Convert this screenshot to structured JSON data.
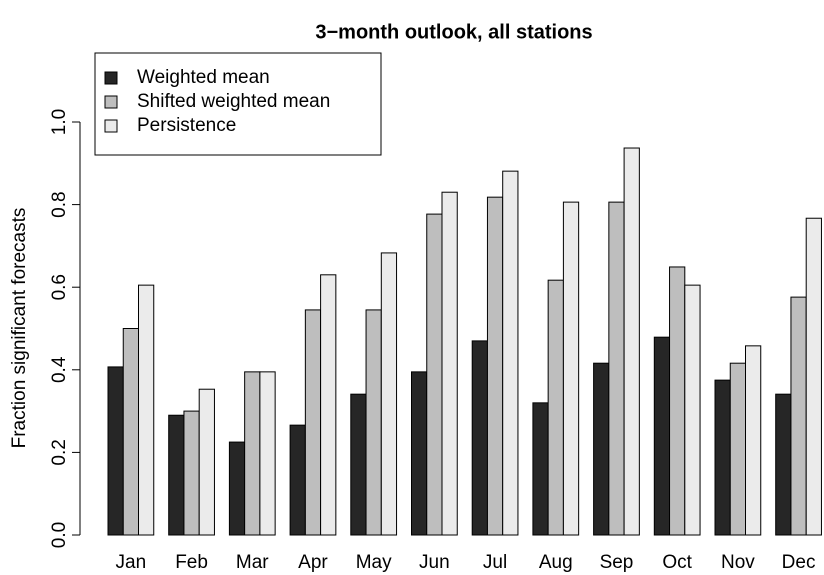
{
  "chart_data": {
    "type": "bar",
    "title": "3−month outlook, all stations",
    "y_label": "Fraction significant forecasts",
    "categories": [
      "Jan",
      "Feb",
      "Mar",
      "Apr",
      "May",
      "Jun",
      "Jul",
      "Aug",
      "Sep",
      "Oct",
      "Nov",
      "Dec"
    ],
    "series": [
      {
        "name": "Weighted mean",
        "color": "#262626",
        "values": [
          0.407,
          0.29,
          0.225,
          0.266,
          0.341,
          0.395,
          0.47,
          0.32,
          0.416,
          0.479,
          0.375,
          0.341
        ]
      },
      {
        "name": "Shifted weighted mean",
        "color": "#bebebe",
        "values": [
          0.5,
          0.3,
          0.395,
          0.545,
          0.545,
          0.777,
          0.818,
          0.617,
          0.806,
          0.649,
          0.416,
          0.576
        ]
      },
      {
        "name": "Persistence",
        "color": "#ebebeb",
        "values": [
          0.605,
          0.353,
          0.395,
          0.63,
          0.683,
          0.83,
          0.881,
          0.806,
          0.937,
          0.605,
          0.458,
          0.767
        ]
      }
    ],
    "ylim": [
      0,
      1
    ],
    "yticks": [
      {
        "value": 0,
        "label": "0.0"
      },
      {
        "value": 0.2,
        "label": "0.2"
      },
      {
        "value": 0.4,
        "label": "0.4"
      },
      {
        "value": 0.6,
        "label": "0.6"
      },
      {
        "value": 0.8,
        "label": "0.8"
      },
      {
        "value": 1,
        "label": "1.0"
      }
    ],
    "legend": "topleft"
  }
}
